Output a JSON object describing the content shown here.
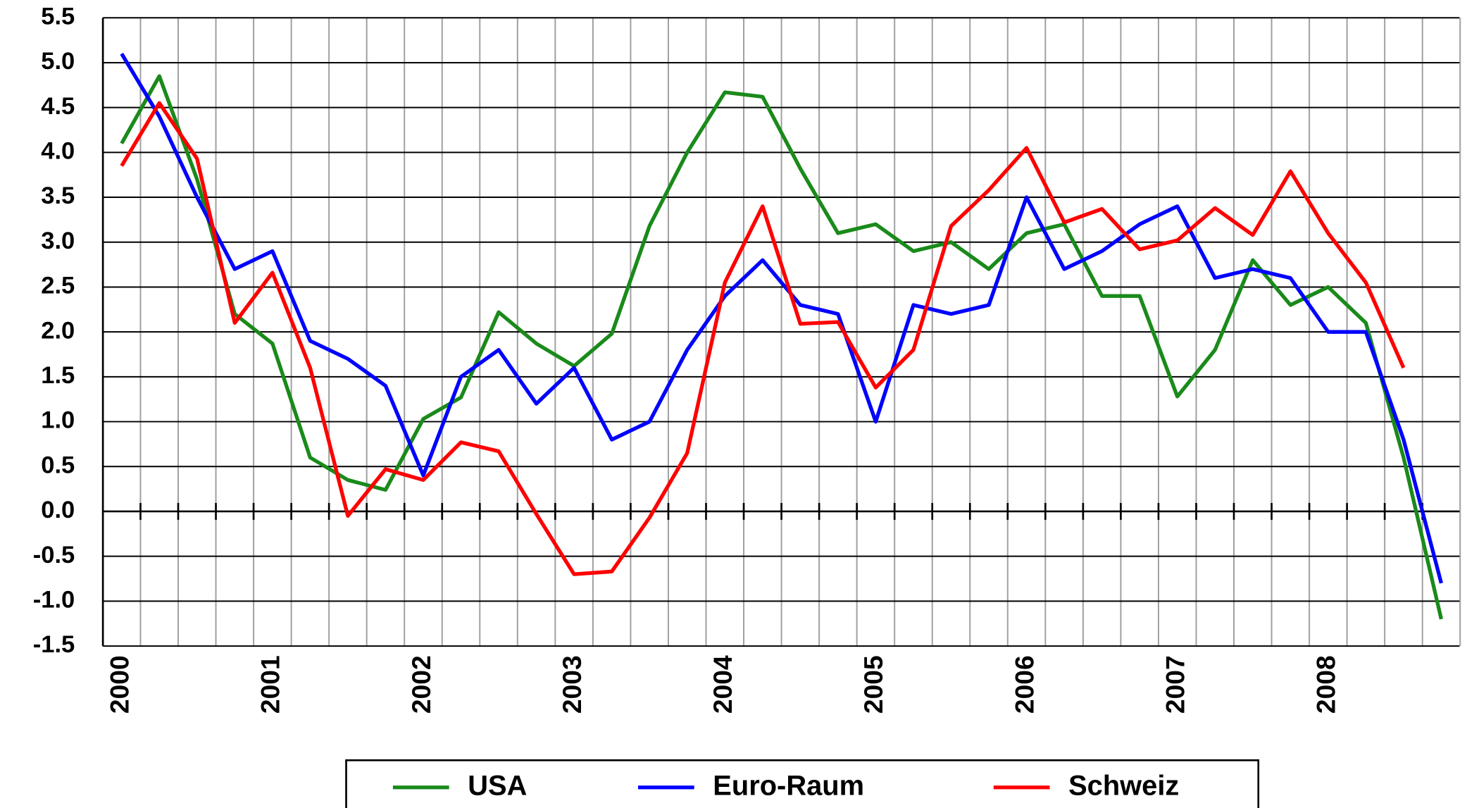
{
  "chart_data": {
    "type": "line",
    "categories": [
      "2000",
      null,
      null,
      null,
      "2001",
      null,
      null,
      null,
      "2002",
      null,
      null,
      null,
      "2003",
      null,
      null,
      null,
      "2004",
      null,
      null,
      null,
      "2005",
      null,
      null,
      null,
      "2006",
      null,
      null,
      null,
      "2007",
      null,
      null,
      null,
      "2008",
      null,
      null,
      null
    ],
    "series": [
      {
        "name": "USA",
        "color": "#1a8a1a",
        "values": [
          4.1,
          4.85,
          3.7,
          2.2,
          1.87,
          0.6,
          0.35,
          0.24,
          1.03,
          1.27,
          2.22,
          1.87,
          1.62,
          1.98,
          3.18,
          4.0,
          4.67,
          4.62,
          3.82,
          3.1,
          3.2,
          2.9,
          3.0,
          2.7,
          3.1,
          3.2,
          2.4,
          2.4,
          1.28,
          1.8,
          2.8,
          2.3,
          2.5,
          2.1,
          0.6,
          -1.2
        ]
      },
      {
        "name": "Euro-Raum",
        "color": "#0000ff",
        "values": [
          5.1,
          4.4,
          3.5,
          2.7,
          2.9,
          1.9,
          1.7,
          1.4,
          0.4,
          1.5,
          1.8,
          1.2,
          1.6,
          0.8,
          1.0,
          1.8,
          2.4,
          2.8,
          2.3,
          2.2,
          1.0,
          2.3,
          2.2,
          2.3,
          3.5,
          2.7,
          2.9,
          3.2,
          3.4,
          2.6,
          2.7,
          2.6,
          2.0,
          2.0,
          0.8,
          -0.8
        ]
      },
      {
        "name": "Schweiz",
        "color": "#ff0000",
        "values": [
          3.85,
          4.55,
          3.93,
          2.1,
          2.66,
          1.6,
          -0.05,
          0.47,
          0.35,
          0.77,
          0.67,
          -0.03,
          -0.7,
          -0.67,
          -0.07,
          0.65,
          2.55,
          3.4,
          2.09,
          2.11,
          1.38,
          1.8,
          3.18,
          3.58,
          4.05,
          3.22,
          3.37,
          2.92,
          3.02,
          3.38,
          3.08,
          3.79,
          3.1,
          2.55,
          1.6,
          null
        ]
      }
    ],
    "ylim": [
      -1.5,
      5.5
    ],
    "yticks": [
      {
        "value": -1.5,
        "label": "-1.5"
      },
      {
        "value": -1,
        "label": "-1.0"
      },
      {
        "value": -0.5,
        "label": "-0.5"
      },
      {
        "value": 0,
        "label": "0.0"
      },
      0.5,
      {
        "value": 1,
        "label": "1.0"
      },
      1.5,
      {
        "value": 2,
        "label": "2.0"
      },
      2.5,
      {
        "value": 3,
        "label": "3.0"
      },
      3.5,
      {
        "value": 4,
        "label": "4.0"
      },
      4.5,
      {
        "value": 5,
        "label": "5.0"
      },
      5.5
    ],
    "grid": true,
    "legend": "bottom"
  }
}
